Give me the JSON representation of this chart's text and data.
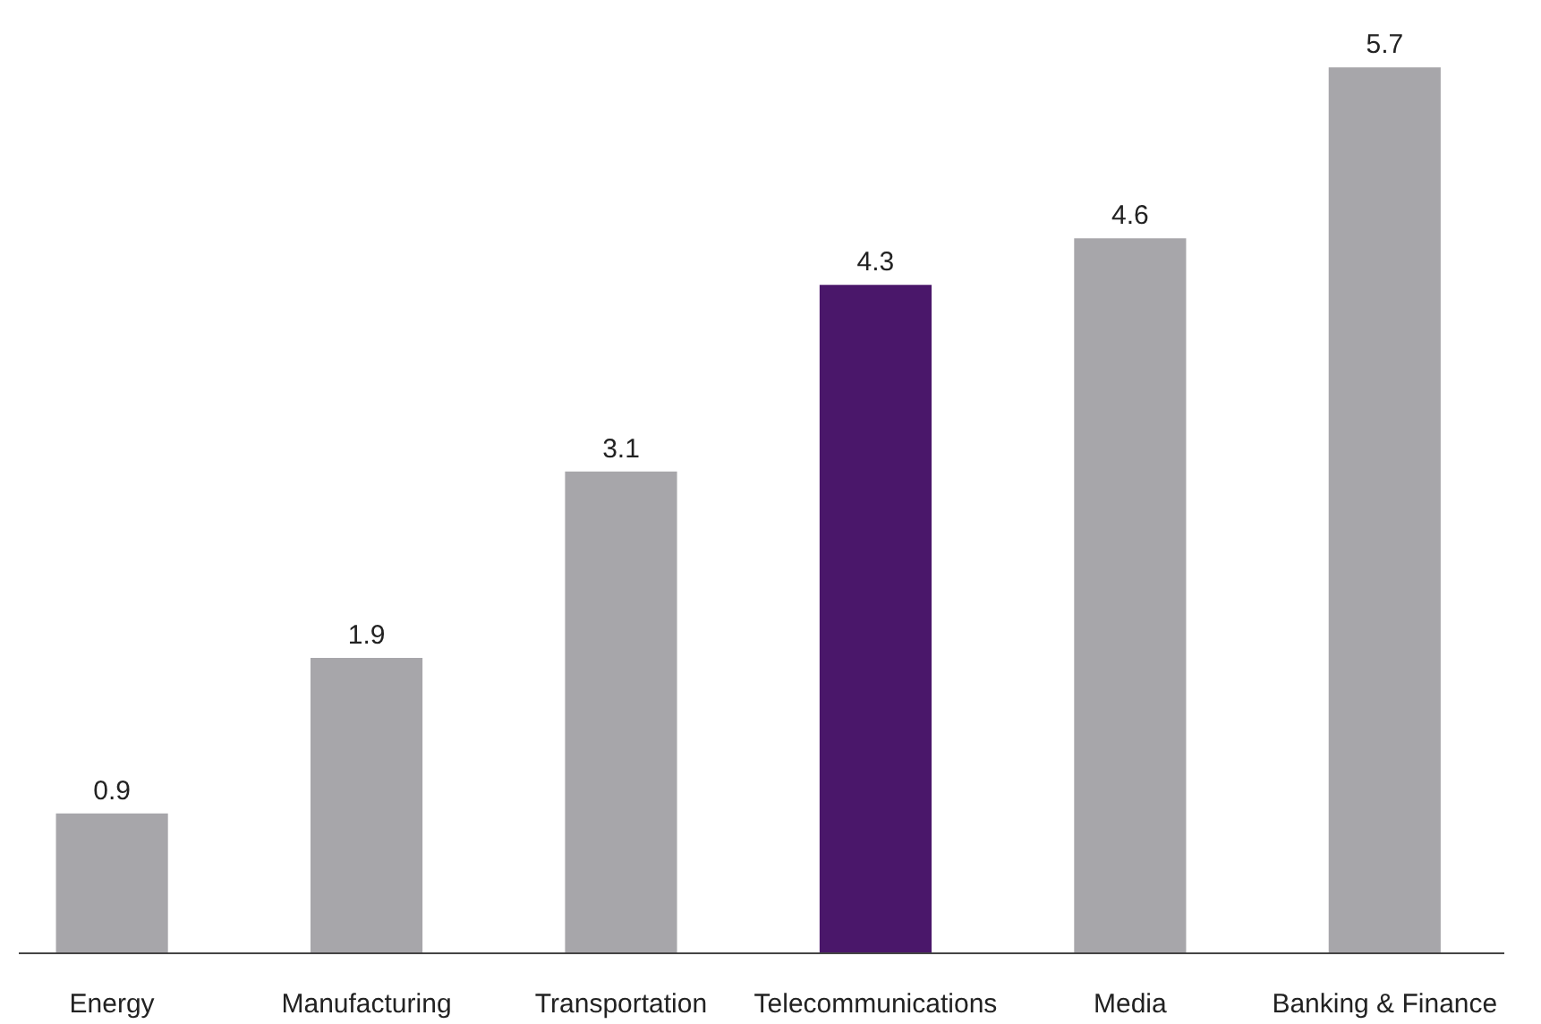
{
  "chart_data": {
    "type": "bar",
    "categories": [
      "Energy",
      "Manufacturing",
      "Transportation",
      "Telecommunications",
      "Media",
      "Banking & Finance"
    ],
    "values": [
      0.9,
      1.9,
      3.1,
      4.3,
      4.6,
      5.7
    ],
    "colors": [
      "#a7a6aa",
      "#a7a6aa",
      "#a7a6aa",
      "#4a176a",
      "#a7a6aa",
      "#a7a6aa"
    ],
    "data_labels": true
  }
}
